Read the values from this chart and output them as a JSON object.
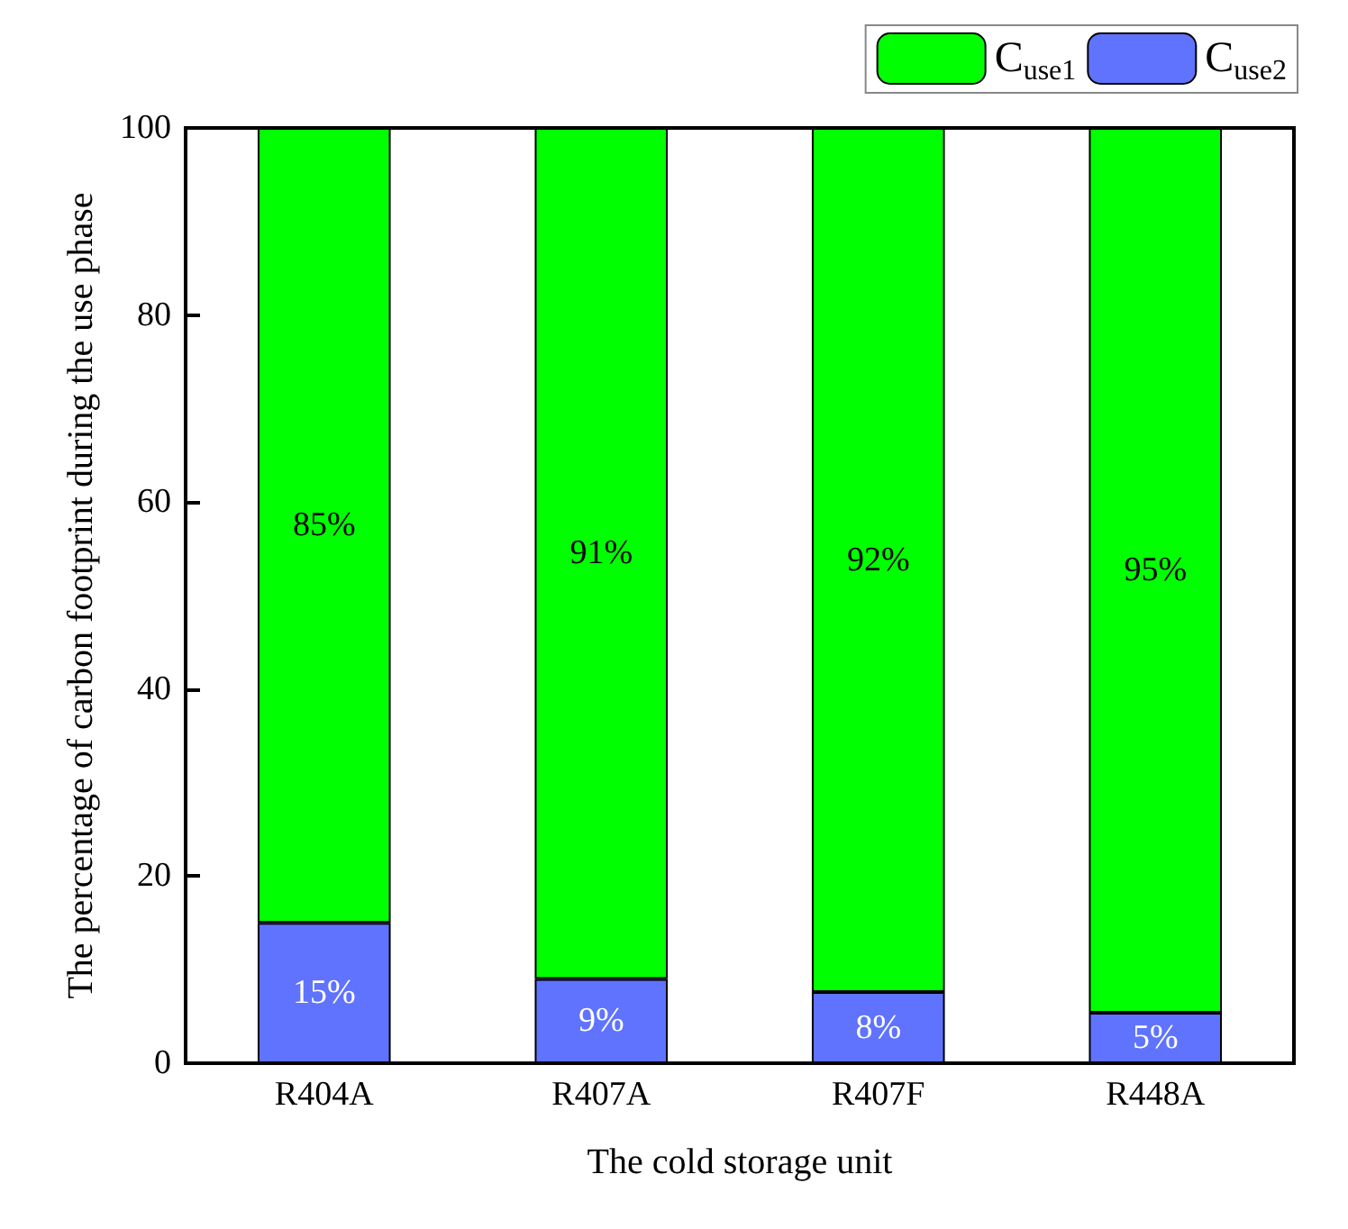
{
  "chart_data": {
    "type": "bar",
    "stacked": true,
    "xlabel": "The cold storage unit",
    "ylabel": "The percentage of carbon footprint during the use phase",
    "categories": [
      "R404A",
      "R407A",
      "R407F",
      "R448A"
    ],
    "series": [
      {
        "name": "C$_{use2}$",
        "color": "#5f73ff",
        "values": [
          15,
          9,
          7.6,
          5.4
        ],
        "value_labels": [
          "15%",
          "9%",
          "8%",
          "5%"
        ]
      },
      {
        "name": "C$_{use1}$",
        "color": "#00ff00",
        "values": [
          85,
          91,
          92.4,
          94.6
        ],
        "value_labels": [
          "85%",
          "91%",
          "92%",
          "95%"
        ]
      }
    ],
    "ylim": [
      0,
      100
    ],
    "yticks": [
      0,
      20,
      40,
      60,
      80,
      100
    ],
    "grid": false,
    "legend": "top right"
  }
}
